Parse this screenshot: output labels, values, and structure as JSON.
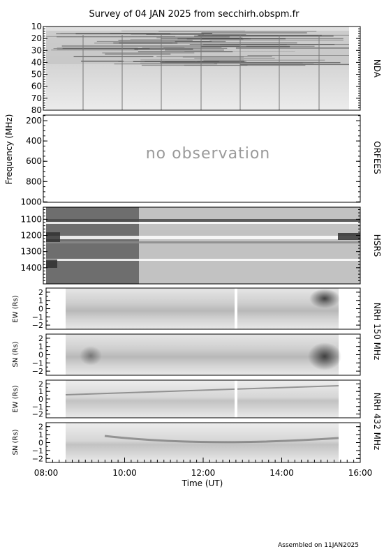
{
  "title": "Survey of 04 JAN 2025 from secchirh.obspm.fr",
  "footer": "Assembled on  11JAN2025",
  "chart_data": {
    "type": "heatmap",
    "title": "Survey of 04 JAN 2025 from secchirh.obspm.fr",
    "xlabel": "Time (UT)",
    "x_range": [
      "08:00",
      "16:00"
    ],
    "x_ticks": [
      "08:00",
      "10:00",
      "12:00",
      "14:00",
      "16:00"
    ],
    "shared_ylabel": "Frequency (MHz)",
    "panels": [
      {
        "id": "nda",
        "instrument": "NDA",
        "ylabel": "",
        "ylim": [
          10,
          80
        ],
        "yticks": [
          "10",
          "20",
          "30",
          "40",
          "50",
          "60",
          "70",
          "80"
        ],
        "data_coverage": [
          "08:00",
          "15:45"
        ],
        "note": ""
      },
      {
        "id": "orfees",
        "instrument": "ORFEES",
        "ylabel": "",
        "ylim": [
          145,
          1004
        ],
        "yticks": [
          "200",
          "400",
          "600",
          "800",
          "1000"
        ],
        "data_coverage": null,
        "note": "no observation"
      },
      {
        "id": "hsrs",
        "instrument": "HSRS",
        "ylabel": "",
        "ylim": [
          1025,
          1500
        ],
        "yticks": [
          "1100",
          "1200",
          "1300",
          "1400"
        ],
        "data_coverage": [
          "08:00",
          "16:00"
        ],
        "note": ""
      },
      {
        "id": "nrh150ew",
        "instrument": "",
        "ylabel": "EW (Rs)",
        "ylim": [
          -2.5,
          2.5
        ],
        "yticks": [
          "2",
          "1",
          "0",
          "−1",
          "−2"
        ],
        "data_coverage": [
          "08:30",
          "15:25"
        ],
        "note": ""
      },
      {
        "id": "nrh150sn",
        "instrument": "",
        "ylabel": "SN (Rs)",
        "ylim": [
          -2.5,
          2.5
        ],
        "yticks": [
          "2",
          "1",
          "0",
          "−1",
          "−2"
        ],
        "data_coverage": [
          "08:30",
          "15:25"
        ],
        "note": ""
      },
      {
        "id": "nrh432ew",
        "instrument": "",
        "ylabel": "EW (Rs)",
        "ylim": [
          -2.5,
          2.5
        ],
        "yticks": [
          "2",
          "1",
          "0",
          "−1",
          "−2"
        ],
        "data_coverage": [
          "08:30",
          "15:25"
        ],
        "note": ""
      },
      {
        "id": "nrh432sn",
        "instrument": "",
        "ylabel": "SN (Rs)",
        "ylim": [
          -2.5,
          2.5
        ],
        "yticks": [
          "2",
          "1",
          "0",
          "−1",
          "−2"
        ],
        "data_coverage": [
          "08:30",
          "15:25"
        ],
        "note": ""
      }
    ],
    "right_labels": [
      {
        "text": "NRH 150 MHz",
        "spans": [
          "nrh150ew",
          "nrh150sn"
        ]
      },
      {
        "text": "NRH 432 MHz",
        "spans": [
          "nrh432ew",
          "nrh432sn"
        ]
      }
    ]
  }
}
